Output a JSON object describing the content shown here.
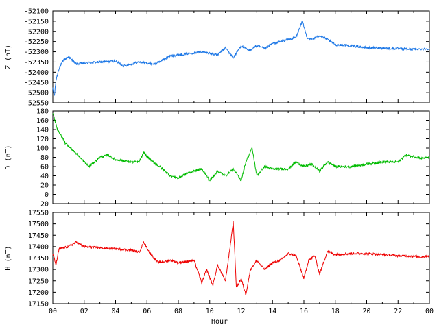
{
  "chart_data": [
    {
      "type": "line",
      "title": "",
      "xlabel": "",
      "ylabel": "Z (nT)",
      "xlim": [
        0,
        24
      ],
      "ylim": [
        -52550,
        -52100
      ],
      "yticks": [
        "-52100",
        "-52150",
        "-52200",
        "-52250",
        "-52300",
        "-52350",
        "-52400",
        "-52450",
        "-52500",
        "-52550"
      ],
      "x_ticks": [
        "00",
        "02",
        "04",
        "06",
        "08",
        "10",
        "12",
        "14",
        "16",
        "18",
        "20",
        "22",
        "00"
      ],
      "color": "#1e78e6",
      "grid": false,
      "series": [
        {
          "x": [
            0,
            0.1,
            0.2,
            0.4,
            0.7,
            1.0,
            1.5,
            2,
            3,
            4,
            4.5,
            5.5,
            6.5,
            7.5,
            8.5,
            9.5,
            10.5,
            11.0,
            11.5,
            12.0,
            12.5,
            13.0,
            13.5,
            14.0,
            15.0,
            15.5,
            15.9,
            16.2,
            16.5,
            17.0,
            17.5,
            18.0,
            19,
            20,
            21,
            22,
            23,
            24
          ],
          "values": [
            -52480,
            -52520,
            -52440,
            -52380,
            -52340,
            -52325,
            -52360,
            -52355,
            -52350,
            -52345,
            -52370,
            -52350,
            -52360,
            -52320,
            -52310,
            -52300,
            -52315,
            -52280,
            -52330,
            -52270,
            -52295,
            -52270,
            -52285,
            -52260,
            -52240,
            -52230,
            -52150,
            -52230,
            -52240,
            -52220,
            -52240,
            -52265,
            -52270,
            -52280,
            -52282,
            -52285,
            -52288,
            -52285
          ]
        }
      ]
    },
    {
      "type": "line",
      "title": "",
      "xlabel": "",
      "ylabel": "D (nT)",
      "xlim": [
        0,
        24
      ],
      "ylim": [
        -20,
        180
      ],
      "yticks": [
        "180",
        "160",
        "140",
        "120",
        "100",
        "80",
        "60",
        "40",
        "20",
        "0",
        "-20"
      ],
      "x_ticks": [
        "00",
        "02",
        "04",
        "06",
        "08",
        "10",
        "12",
        "14",
        "16",
        "18",
        "20",
        "22",
        "00"
      ],
      "color": "#00bb00",
      "grid": false,
      "series": [
        {
          "x": [
            0,
            0.3,
            0.8,
            1.3,
            2.0,
            2.3,
            3.0,
            3.5,
            4.0,
            5.0,
            5.5,
            5.8,
            6.2,
            7.0,
            7.5,
            8.0,
            8.5,
            9.0,
            9.5,
            10.0,
            10.5,
            11.0,
            11.5,
            12.0,
            12.3,
            12.7,
            13.0,
            13.5,
            14.0,
            15.0,
            15.5,
            16.0,
            16.5,
            17.0,
            17.5,
            18.0,
            19,
            20,
            21,
            22,
            22.5,
            23.5,
            24
          ],
          "values": [
            175,
            140,
            110,
            95,
            70,
            60,
            80,
            85,
            75,
            70,
            70,
            90,
            75,
            55,
            40,
            35,
            45,
            50,
            55,
            30,
            50,
            40,
            55,
            30,
            70,
            100,
            40,
            60,
            55,
            55,
            70,
            60,
            65,
            50,
            70,
            60,
            60,
            65,
            70,
            70,
            85,
            78,
            80
          ]
        }
      ]
    },
    {
      "type": "line",
      "title": "",
      "xlabel": "Hour",
      "ylabel": "H (nT)",
      "xlim": [
        0,
        24
      ],
      "ylim": [
        17150,
        17550
      ],
      "yticks": [
        "17550",
        "17500",
        "17450",
        "17400",
        "17350",
        "17300",
        "17250",
        "17200",
        "17150"
      ],
      "x_ticks": [
        "00",
        "02",
        "04",
        "06",
        "08",
        "10",
        "12",
        "14",
        "16",
        "18",
        "20",
        "22",
        "00"
      ],
      "color": "#ee0000",
      "grid": false,
      "series": [
        {
          "x": [
            0,
            0.2,
            0.4,
            0.7,
            1.0,
            1.5,
            2.0,
            3,
            4,
            5,
            5.5,
            5.8,
            6.2,
            6.7,
            7.5,
            8.0,
            8.5,
            9.0,
            9.5,
            9.8,
            10.2,
            10.5,
            11.0,
            11.3,
            11.5,
            11.7,
            12.0,
            12.3,
            12.6,
            13.0,
            13.5,
            14.0,
            14.5,
            15.0,
            15.5,
            16.0,
            16.3,
            16.7,
            17.0,
            17.5,
            18.0,
            19,
            20,
            21,
            22,
            22.5,
            23.5,
            24
          ],
          "values": [
            17370,
            17320,
            17390,
            17395,
            17400,
            17420,
            17400,
            17395,
            17390,
            17385,
            17375,
            17420,
            17370,
            17330,
            17340,
            17330,
            17335,
            17340,
            17240,
            17300,
            17230,
            17320,
            17250,
            17400,
            17510,
            17220,
            17260,
            17190,
            17300,
            17340,
            17300,
            17330,
            17340,
            17370,
            17360,
            17260,
            17340,
            17360,
            17280,
            17380,
            17365,
            17370,
            17370,
            17365,
            17360,
            17360,
            17355,
            17360
          ]
        }
      ]
    }
  ]
}
